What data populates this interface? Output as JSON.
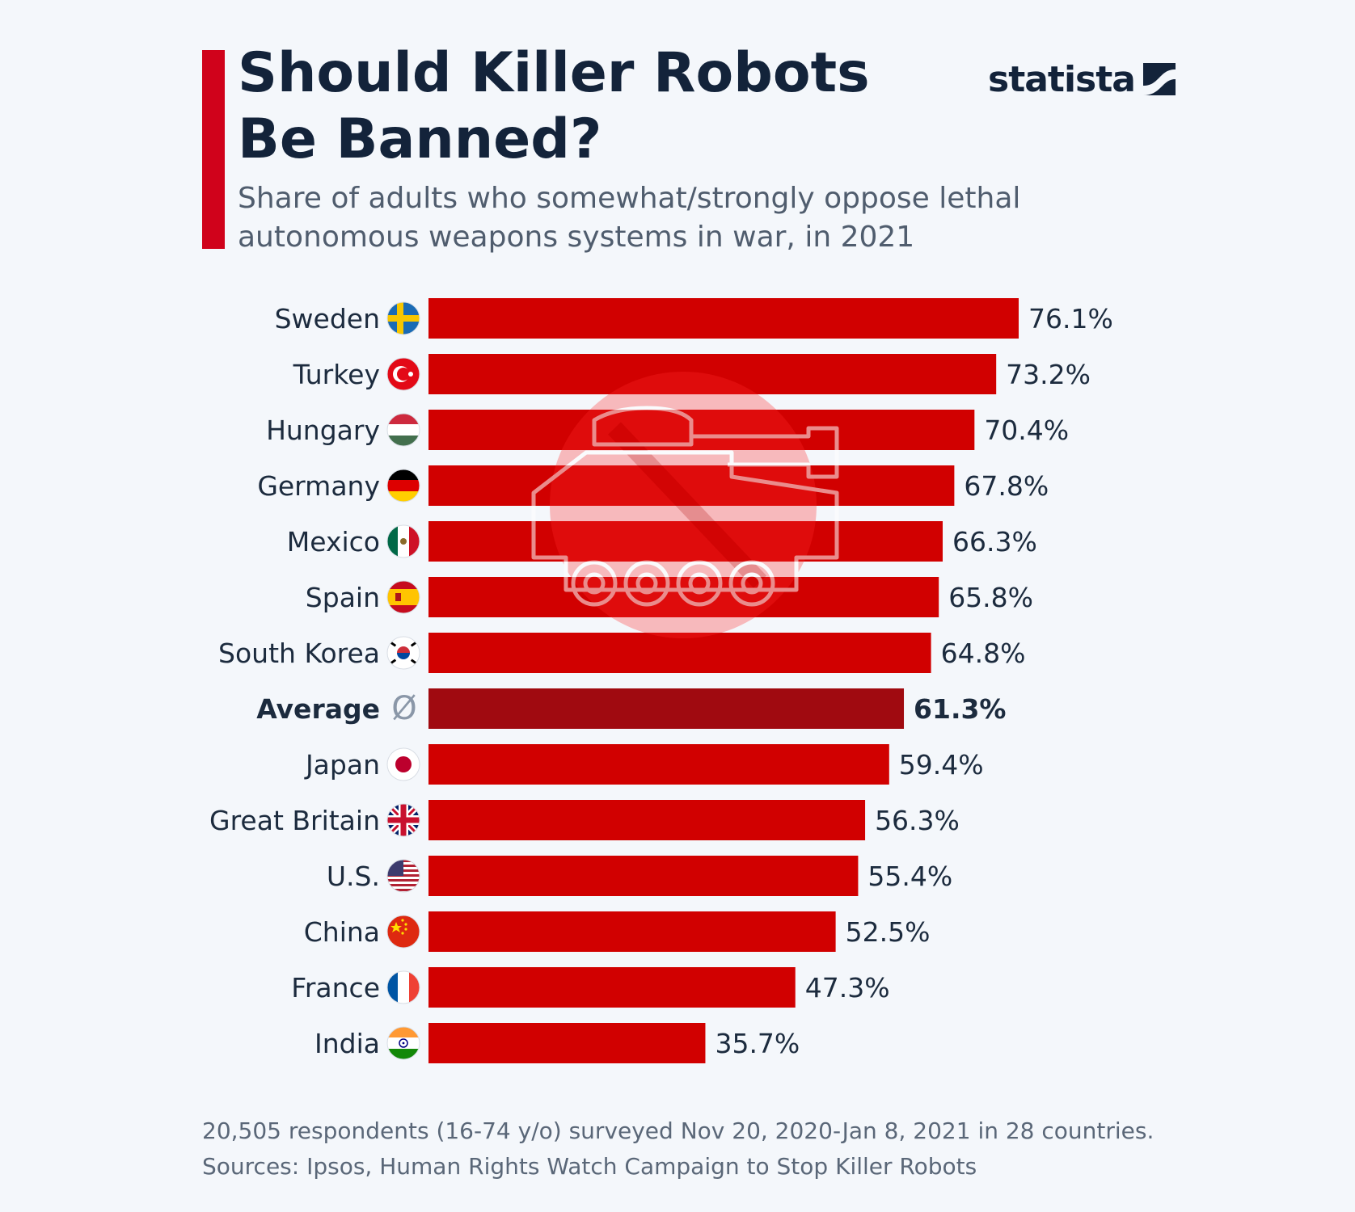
{
  "header": {
    "title_line1": "Should Killer Robots",
    "title_line2": "Be Banned?",
    "subtitle_line1": "Share of adults who somewhat/strongly oppose lethal",
    "subtitle_line2": "autonomous weapons systems in war, in 2021",
    "brand": "statista"
  },
  "footer": {
    "note": "20,505 respondents (16-74 y/o) surveyed Nov 20, 2020-Jan 8, 2021 in 28 countries.",
    "sources": "Sources: Ipsos, Human Rights Watch Campaign to Stop Killer Robots"
  },
  "colors": {
    "bar": "#d10000",
    "average_bar": "#a00a10",
    "accent": "#d0021b",
    "text": "#1c2b3e",
    "watermark": "#ff2a2a"
  },
  "chart_data": {
    "type": "bar",
    "orientation": "horizontal",
    "title": "Should Killer Robots Be Banned?",
    "unit": "%",
    "xlim": [
      0,
      80
    ],
    "average_symbol": "Ø",
    "categories": [
      "Sweden",
      "Turkey",
      "Hungary",
      "Germany",
      "Mexico",
      "Spain",
      "South Korea",
      "Average",
      "Japan",
      "Great Britain",
      "U.S.",
      "China",
      "France",
      "India"
    ],
    "values": [
      76.1,
      73.2,
      70.4,
      67.8,
      66.3,
      65.8,
      64.8,
      61.3,
      59.4,
      56.3,
      55.4,
      52.5,
      47.3,
      35.7
    ],
    "labels": [
      "76.1%",
      "73.2%",
      "70.4%",
      "67.8%",
      "66.3%",
      "65.8%",
      "64.8%",
      "61.3%",
      "59.4%",
      "56.3%",
      "55.4%",
      "52.5%",
      "47.3%",
      "35.7%"
    ],
    "highlight": "Average",
    "flags": [
      "sweden-flag-icon",
      "turkey-flag-icon",
      "hungary-flag-icon",
      "germany-flag-icon",
      "mexico-flag-icon",
      "spain-flag-icon",
      "south-korea-flag-icon",
      "average-symbol-icon",
      "japan-flag-icon",
      "great-britain-flag-icon",
      "us-flag-icon",
      "china-flag-icon",
      "france-flag-icon",
      "india-flag-icon"
    ]
  }
}
